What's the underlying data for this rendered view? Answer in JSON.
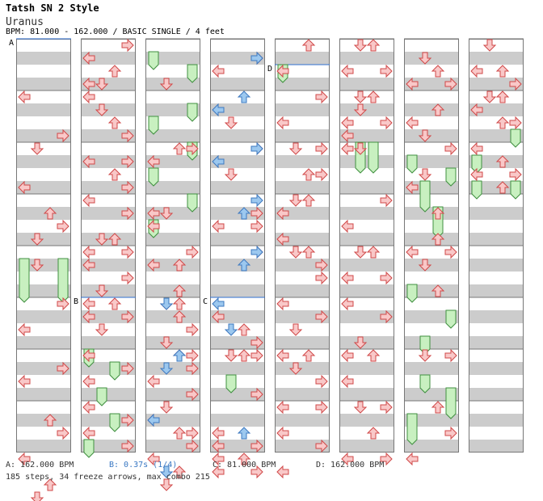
{
  "header": {
    "title": "Tatsh SN 2 Style",
    "song": "Uranus",
    "info": "BPM: 81.000 - 162.000 / BASIC SINGLE / 4 feet"
  },
  "chart": {
    "columns": 8,
    "measures_per_column": 8,
    "lanes": [
      "left",
      "down",
      "up",
      "right"
    ],
    "colors": {
      "normal_fill": "#f9c8c8",
      "normal_stroke": "#d04848",
      "blue_fill": "#9cc8ef",
      "blue_stroke": "#3d78bf",
      "freeze_fill": "#c8f0c0",
      "freeze_stroke": "#3f8f3f",
      "stripe": "#cccccc",
      "marker_line": "#2f6fd0"
    },
    "markers": [
      {
        "label": "A",
        "col": 0,
        "beat": 0
      },
      {
        "label": "B",
        "col": 1,
        "beat": 20
      },
      {
        "label": "C",
        "col": 3,
        "beat": 20
      },
      {
        "label": "D",
        "col": 4,
        "beat": 2
      }
    ]
  },
  "footer": {
    "a": "A: 162.000 BPM",
    "b": "B: 0.37s (1/4)",
    "c": "C: 81.000 BPM",
    "d": "D: 162.000 BPM",
    "stats": "185 steps, 34 freeze arrows, max combo 215"
  }
}
